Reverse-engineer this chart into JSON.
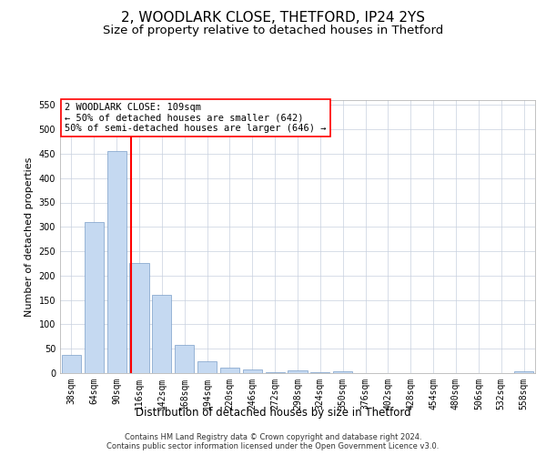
{
  "title": "2, WOODLARK CLOSE, THETFORD, IP24 2YS",
  "subtitle": "Size of property relative to detached houses in Thetford",
  "xlabel": "Distribution of detached houses by size in Thetford",
  "ylabel": "Number of detached properties",
  "footer_line1": "Contains HM Land Registry data © Crown copyright and database right 2024.",
  "footer_line2": "Contains public sector information licensed under the Open Government Licence v3.0.",
  "categories": [
    "38sqm",
    "64sqm",
    "90sqm",
    "116sqm",
    "142sqm",
    "168sqm",
    "194sqm",
    "220sqm",
    "246sqm",
    "272sqm",
    "298sqm",
    "324sqm",
    "350sqm",
    "376sqm",
    "402sqm",
    "428sqm",
    "454sqm",
    "480sqm",
    "506sqm",
    "532sqm",
    "558sqm"
  ],
  "values": [
    38,
    310,
    455,
    226,
    160,
    58,
    25,
    11,
    8,
    1,
    6,
    1,
    3,
    0,
    0,
    0,
    0,
    0,
    0,
    0,
    4
  ],
  "bar_color": "#c5d9f1",
  "bar_edge_color": "#7a9ec8",
  "vline_color": "red",
  "vline_pos": 2.65,
  "annotation_text": "2 WOODLARK CLOSE: 109sqm\n← 50% of detached houses are smaller (642)\n50% of semi-detached houses are larger (646) →",
  "annotation_box_color": "white",
  "annotation_box_edgecolor": "red",
  "ylim": [
    0,
    560
  ],
  "yticks": [
    0,
    50,
    100,
    150,
    200,
    250,
    300,
    350,
    400,
    450,
    500,
    550
  ],
  "background_color": "white",
  "grid_color": "#c8d0de",
  "title_fontsize": 11,
  "subtitle_fontsize": 9.5,
  "xlabel_fontsize": 8.5,
  "ylabel_fontsize": 8,
  "tick_fontsize": 7,
  "annotation_fontsize": 7.5,
  "footer_fontsize": 6
}
